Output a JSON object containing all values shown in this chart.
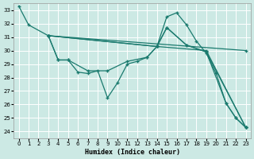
{
  "xlabel": "Humidex (Indice chaleur)",
  "xlim": [
    -0.5,
    23.5
  ],
  "ylim": [
    23.5,
    33.5
  ],
  "yticks": [
    24,
    25,
    26,
    27,
    28,
    29,
    30,
    31,
    32,
    33
  ],
  "xticks": [
    0,
    1,
    2,
    3,
    4,
    5,
    6,
    7,
    8,
    9,
    10,
    11,
    12,
    13,
    14,
    15,
    16,
    17,
    18,
    19,
    20,
    21,
    22,
    23
  ],
  "bg_color": "#cce9e4",
  "line_color": "#1a7a6e",
  "grid_color": "#ffffff",
  "lines": [
    [
      [
        0,
        33.3
      ],
      [
        1,
        31.9
      ],
      [
        3,
        31.1
      ],
      [
        4,
        29.3
      ],
      [
        5,
        29.3
      ],
      [
        6,
        28.4
      ],
      [
        7,
        28.3
      ],
      [
        8,
        28.5
      ],
      [
        9,
        26.5
      ],
      [
        10,
        27.6
      ],
      [
        11,
        29.0
      ],
      [
        12,
        29.2
      ],
      [
        13,
        29.5
      ],
      [
        14,
        30.3
      ],
      [
        15,
        32.5
      ],
      [
        16,
        32.8
      ],
      [
        17,
        31.9
      ],
      [
        18,
        30.7
      ],
      [
        19,
        29.8
      ],
      [
        20,
        28.3
      ],
      [
        21,
        26.1
      ],
      [
        22,
        25.0
      ],
      [
        23,
        24.3
      ]
    ],
    [
      [
        3,
        31.1
      ],
      [
        4,
        29.3
      ],
      [
        5,
        29.3
      ],
      [
        7,
        28.5
      ],
      [
        9,
        28.5
      ],
      [
        11,
        29.2
      ],
      [
        13,
        29.5
      ],
      [
        14,
        30.3
      ],
      [
        15,
        31.7
      ],
      [
        17,
        30.4
      ],
      [
        19,
        29.9
      ],
      [
        21,
        26.1
      ],
      [
        22,
        25.0
      ],
      [
        23,
        24.3
      ]
    ],
    [
      [
        3,
        31.1
      ],
      [
        14,
        30.3
      ],
      [
        15,
        31.7
      ],
      [
        17,
        30.4
      ],
      [
        19,
        29.9
      ],
      [
        23,
        24.3
      ]
    ],
    [
      [
        3,
        31.1
      ],
      [
        14,
        30.3
      ],
      [
        19,
        30.0
      ],
      [
        23,
        24.3
      ]
    ],
    [
      [
        3,
        31.1
      ],
      [
        23,
        30.0
      ]
    ]
  ]
}
